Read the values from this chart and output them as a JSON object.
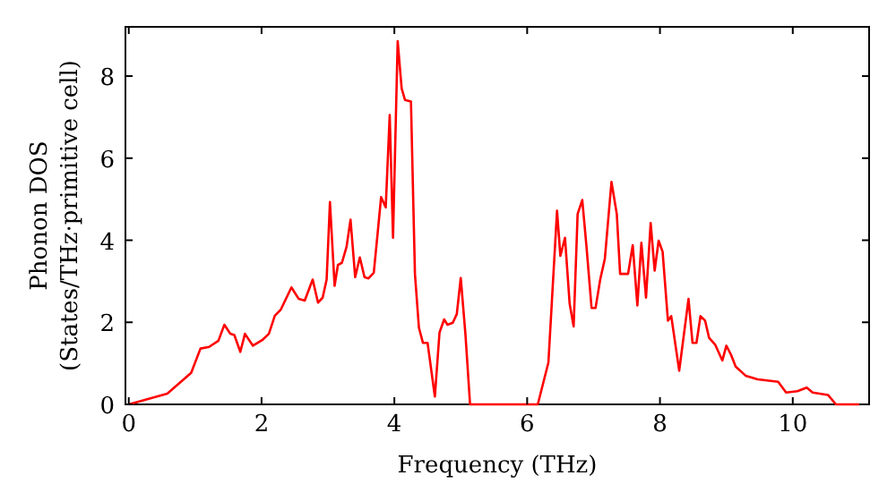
{
  "chart_data": {
    "type": "line",
    "xlabel": "Frequency (THz)",
    "ylabel": "Phonon DOS\n(States/THz·primitive cell)",
    "xlim": [
      -0.05,
      11.15
    ],
    "ylim": [
      0,
      9.2
    ],
    "xticks": [
      0,
      2,
      4,
      6,
      8,
      10
    ],
    "yticks": [
      0,
      2,
      4,
      6,
      8
    ],
    "grid": false,
    "marker": "none",
    "line_style": "solid",
    "series": [
      {
        "color": "#ff0000",
        "x": [
          0,
          0.58,
          0.94,
          1.08,
          1.21,
          1.35,
          1.44,
          1.53,
          1.59,
          1.68,
          1.75,
          1.87,
          2.02,
          2.11,
          2.2,
          2.29,
          2.45,
          2.56,
          2.65,
          2.77,
          2.85,
          2.92,
          2.98,
          3.03,
          3.1,
          3.15,
          3.21,
          3.28,
          3.34,
          3.41,
          3.48,
          3.55,
          3.61,
          3.69,
          3.75,
          3.8,
          3.87,
          3.93,
          3.98,
          4.05,
          4.11,
          4.16,
          4.25,
          4.31,
          4.37,
          4.43,
          4.5,
          4.61,
          4.68,
          4.75,
          4.8,
          4.88,
          4.94,
          5.0,
          5.07,
          5.14,
          6.16,
          6.32,
          6.45,
          6.5,
          6.57,
          6.64,
          6.7,
          6.76,
          6.83,
          6.89,
          6.97,
          7.03,
          7.1,
          7.17,
          7.27,
          7.35,
          7.4,
          7.52,
          7.59,
          7.66,
          7.72,
          7.79,
          7.86,
          7.92,
          7.98,
          8.04,
          8.12,
          8.17,
          8.29,
          8.43,
          8.49,
          8.55,
          8.61,
          8.68,
          8.74,
          8.83,
          8.94,
          9.0,
          9.07,
          9.14,
          9.29,
          9.47,
          9.78,
          9.9,
          10.07,
          10.21,
          10.3,
          10.53,
          10.65,
          11.0
        ],
        "values": [
          0,
          0.26,
          0.77,
          1.36,
          1.4,
          1.55,
          1.94,
          1.72,
          1.69,
          1.28,
          1.72,
          1.43,
          1.58,
          1.72,
          2.16,
          2.31,
          2.85,
          2.57,
          2.53,
          3.04,
          2.48,
          2.6,
          3.04,
          4.93,
          2.89,
          3.4,
          3.45,
          3.84,
          4.5,
          3.1,
          3.58,
          3.1,
          3.07,
          3.21,
          4.2,
          5.05,
          4.8,
          7.05,
          4.06,
          8.85,
          7.7,
          7.42,
          7.38,
          3.18,
          1.87,
          1.5,
          1.5,
          0.19,
          1.75,
          2.07,
          1.94,
          1.99,
          2.2,
          3.08,
          1.72,
          0,
          0,
          1.02,
          4.72,
          3.62,
          4.06,
          2.45,
          1.9,
          4.64,
          4.98,
          3.91,
          2.35,
          2.35,
          3.04,
          3.55,
          5.42,
          4.64,
          3.18,
          3.18,
          3.88,
          2.41,
          3.94,
          2.6,
          4.42,
          3.26,
          3.99,
          3.72,
          2.04,
          2.15,
          0.82,
          2.57,
          1.5,
          1.5,
          2.15,
          2.04,
          1.62,
          1.46,
          1.07,
          1.43,
          1.21,
          0.92,
          0.7,
          0.61,
          0.55,
          0.29,
          0.32,
          0.41,
          0.29,
          0.23,
          0,
          0
        ]
      }
    ]
  }
}
